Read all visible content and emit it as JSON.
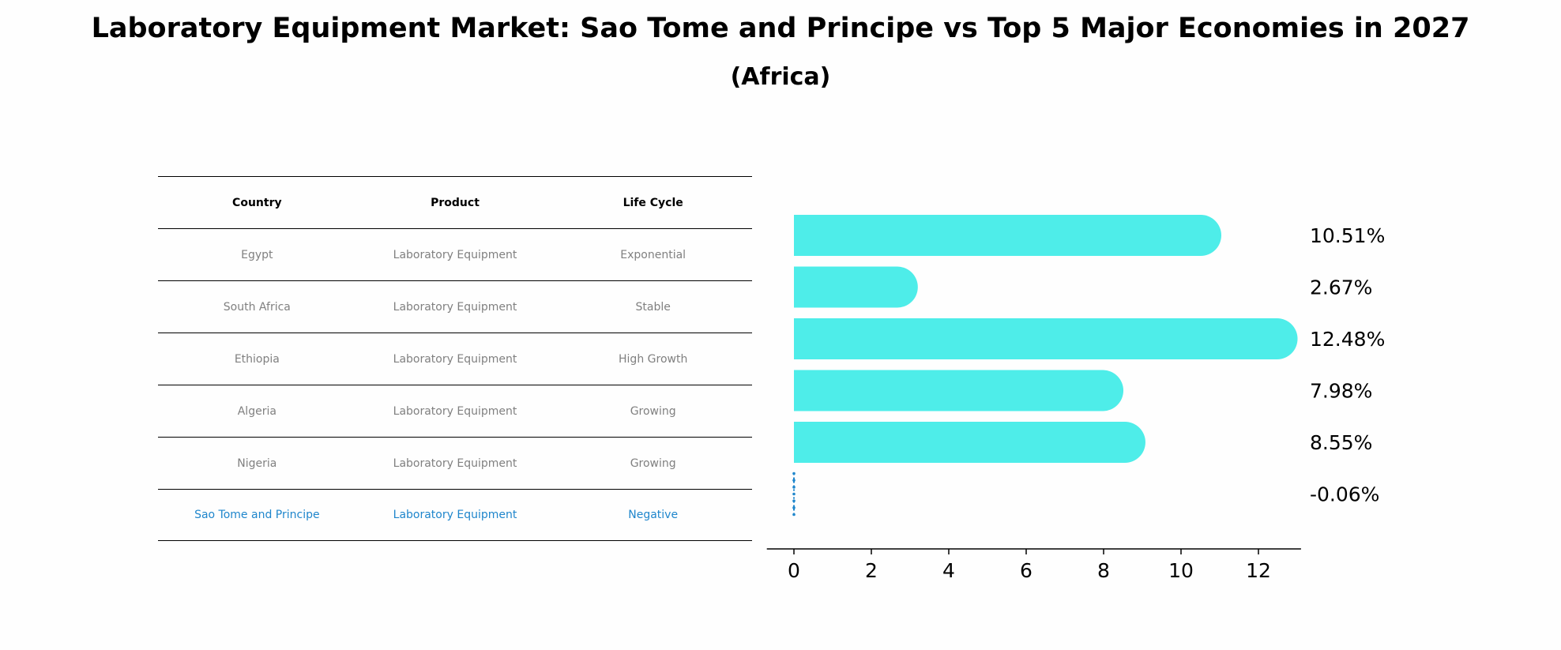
{
  "title": "Laboratory Equipment Market: Sao Tome and Principe vs Top 5 Major Economies in 2027",
  "subtitle": "(Africa)",
  "table": {
    "headers": [
      "Country",
      "Product",
      "Life Cycle"
    ],
    "rows": [
      [
        "Egypt",
        "Laboratory Equipment",
        "Exponential"
      ],
      [
        "South Africa",
        "Laboratory Equipment",
        "Stable"
      ],
      [
        "Ethiopia",
        "Laboratory Equipment",
        "High Growth"
      ],
      [
        "Algeria",
        "Laboratory Equipment",
        "Growing"
      ],
      [
        "Nigeria",
        "Laboratory Equipment",
        "Growing"
      ],
      [
        "Sao Tome and Principe",
        "Laboratory Equipment",
        "Negative"
      ]
    ]
  },
  "chart_data": {
    "type": "bar",
    "orientation": "horizontal",
    "categories": [
      "Egypt",
      "South Africa",
      "Ethiopia",
      "Algeria",
      "Nigeria",
      "Sao Tome and Principe"
    ],
    "values": [
      10.51,
      2.67,
      12.48,
      7.98,
      8.55,
      -0.06
    ],
    "value_labels": [
      "10.51%",
      "2.67%",
      "12.48%",
      "7.98%",
      "8.55%",
      "-0.06%"
    ],
    "xticks": [
      "0",
      "2",
      "4",
      "6",
      "8",
      "10",
      "12"
    ],
    "xlim": [
      -0.7,
      13.1
    ],
    "bar_color": "#4eede9",
    "highlight_color": "#1f86cc",
    "grid": false
  }
}
